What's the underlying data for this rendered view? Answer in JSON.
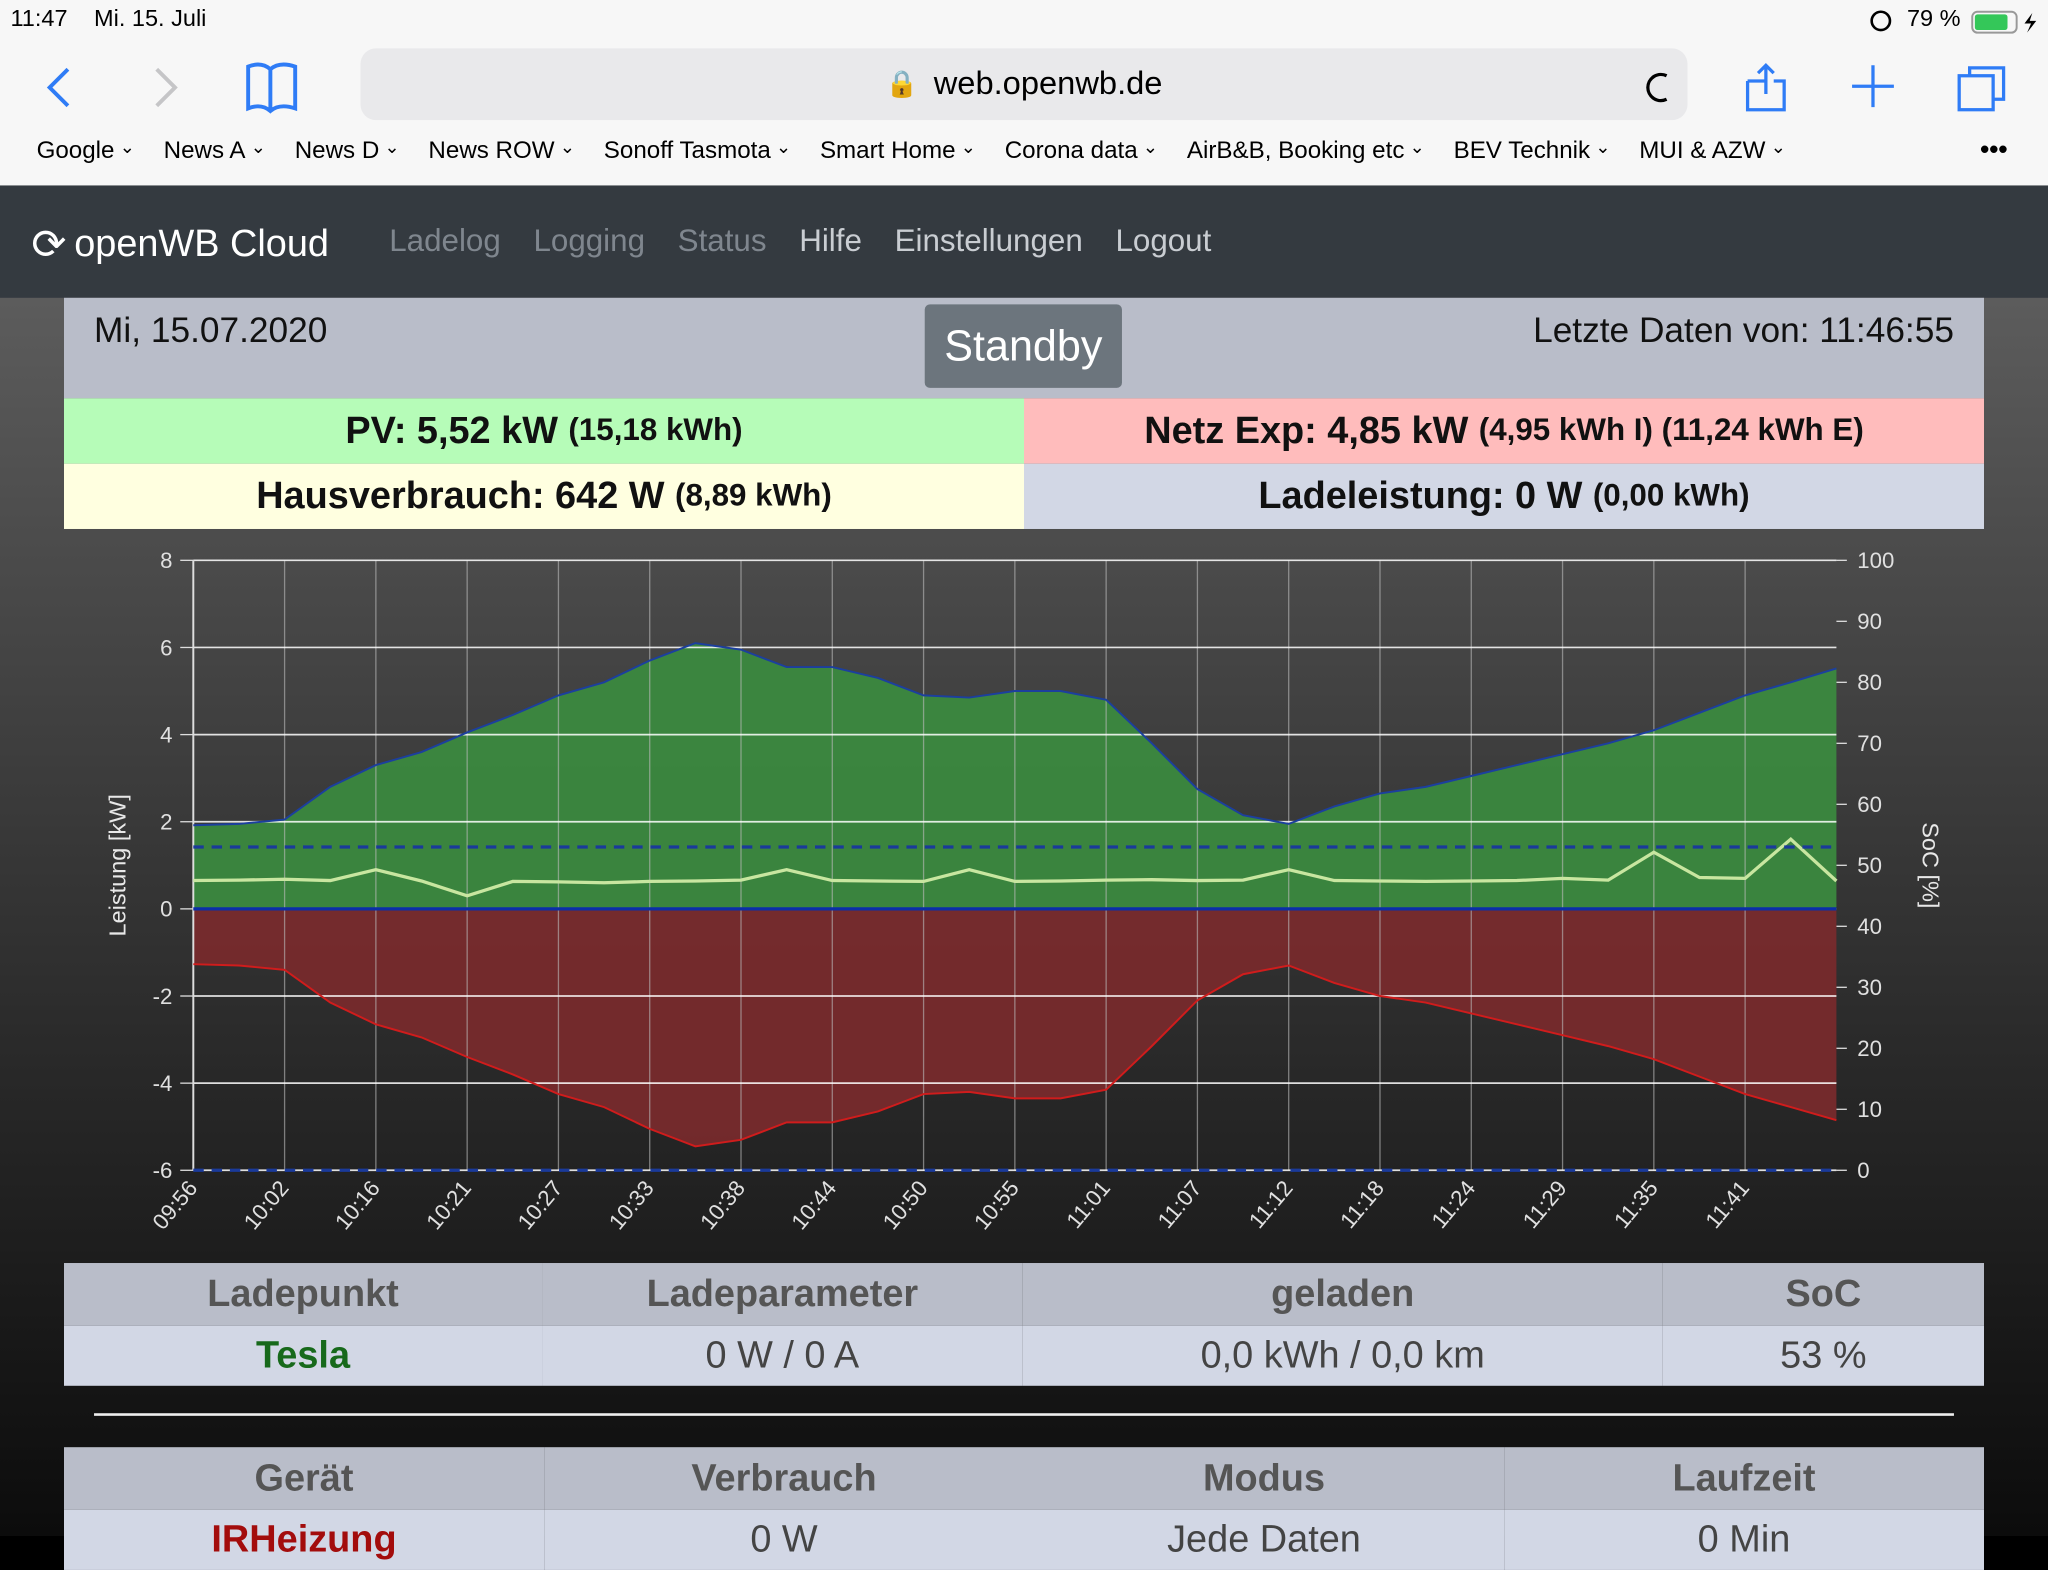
{
  "status_bar": {
    "time": "11:47",
    "date": "Mi. 15. Juli",
    "battery": "79 %"
  },
  "browser": {
    "url": "web.openwb.de",
    "bookmarks": [
      "Google",
      "News A",
      "News D",
      "News ROW",
      "Sonoff Tasmota",
      "Smart Home",
      "Corona data",
      "AirB&B, Booking etc",
      "BEV Technik",
      "MUI & AZW"
    ]
  },
  "nav": {
    "brand": "openWB Cloud",
    "links": [
      "Ladelog",
      "Logging",
      "Status",
      "Hilfe",
      "Einstellungen",
      "Logout"
    ]
  },
  "header": {
    "date": "Mi, 15.07.2020",
    "state": "Standby",
    "last_update": "Letzte Daten von: 11:46:55"
  },
  "summary": [
    {
      "label": "PV:",
      "value": "5,52 kW",
      "detail": "(15,18 kWh)"
    },
    {
      "label": "Netz Exp:",
      "value": "4,85 kW",
      "detail": "(4,95 kWh I) (11,24 kWh E)"
    },
    {
      "label": "Hausverbrauch:",
      "value": "642 W",
      "detail": "(8,89 kWh)"
    },
    {
      "label": "Ladeleistung:",
      "value": "0 W",
      "detail": "(0,00 kWh)"
    }
  ],
  "charge_table": {
    "headers": [
      "Ladepunkt",
      "Ladeparameter",
      "geladen",
      "SoC"
    ],
    "rows": [
      [
        "Tesla",
        "0 W / 0 A",
        "0,0 kWh / 0,0 km",
        "53 %"
      ]
    ]
  },
  "device_table": {
    "headers": [
      "Gerät",
      "Verbrauch",
      "Modus",
      "Laufzeit"
    ],
    "rows": [
      [
        "IRHeizung",
        "0 W",
        "Jede Daten",
        "0 Min"
      ]
    ]
  },
  "chart_data": {
    "type": "line",
    "y_label": "Leistung [kW]",
    "y2_label": "SoC [%]",
    "categories": [
      "09:56",
      null,
      "10:02",
      null,
      "10:16",
      null,
      "10:21",
      null,
      "10:27",
      null,
      "10:33",
      null,
      "10:38",
      null,
      "10:44",
      null,
      "10:50",
      null,
      "10:55",
      null,
      "11:01",
      null,
      "11:07",
      null,
      "11:12",
      null,
      "11:18",
      null,
      "11:24",
      null,
      "11:29",
      null,
      "11:35",
      null,
      "11:41",
      null,
      null
    ],
    "ylim": [
      -6,
      8
    ],
    "yticks": [
      -6,
      -4,
      -2,
      0,
      2,
      4,
      6,
      8
    ],
    "y2lim": [
      0,
      100
    ],
    "y2ticks": [
      0,
      10,
      20,
      30,
      40,
      50,
      60,
      70,
      80,
      90,
      100
    ],
    "grid": true,
    "series": [
      {
        "color": "#1c3f9e",
        "fill": "#3b8b3f",
        "values": [
          1.92,
          1.95,
          2.05,
          2.8,
          3.3,
          3.6,
          4.05,
          4.45,
          4.9,
          5.2,
          5.7,
          6.1,
          5.95,
          5.55,
          5.55,
          5.3,
          4.9,
          4.85,
          5.0,
          5.0,
          4.8,
          3.8,
          2.75,
          2.15,
          1.95,
          2.35,
          2.65,
          2.8,
          3.05,
          3.3,
          3.55,
          3.8,
          4.1,
          4.5,
          4.9,
          5.2,
          5.52
        ]
      },
      {
        "color": "#d01c1c",
        "fill": "#7a2a2c",
        "values": [
          -1.27,
          -1.3,
          -1.4,
          -2.15,
          -2.65,
          -2.95,
          -3.4,
          -3.8,
          -4.25,
          -4.55,
          -5.05,
          -5.45,
          -5.3,
          -4.9,
          -4.9,
          -4.65,
          -4.25,
          -4.2,
          -4.35,
          -4.35,
          -4.15,
          -3.15,
          -2.1,
          -1.5,
          -1.3,
          -1.7,
          -2.0,
          -2.15,
          -2.4,
          -2.65,
          -2.9,
          -3.15,
          -3.45,
          -3.85,
          -4.25,
          -4.55,
          -4.85
        ]
      },
      {
        "color": "#c8e6a0",
        "values": [
          0.65,
          0.66,
          0.68,
          0.65,
          0.9,
          0.64,
          0.3,
          0.63,
          0.62,
          0.6,
          0.63,
          0.64,
          0.66,
          0.9,
          0.65,
          0.64,
          0.63,
          0.9,
          0.63,
          0.64,
          0.66,
          0.67,
          0.65,
          0.66,
          0.9,
          0.65,
          0.64,
          0.63,
          0.64,
          0.65,
          0.7,
          0.66,
          1.3,
          0.72,
          0.7,
          1.6,
          0.64
        ]
      },
      {
        "color": "#0a2fa8",
        "values": [
          0,
          0,
          0,
          0,
          0,
          0,
          0,
          0,
          0,
          0,
          0,
          0,
          0,
          0,
          0,
          0,
          0,
          0,
          0,
          0,
          0,
          0,
          0,
          0,
          0,
          0,
          0,
          0,
          0,
          0,
          0,
          0,
          0,
          0,
          0,
          0,
          0
        ]
      },
      {
        "color": "#1a3a9a",
        "dashed": true,
        "axis": "y2",
        "values": [
          53,
          53,
          53,
          53,
          53,
          53,
          53,
          53,
          53,
          53,
          53,
          53,
          53,
          53,
          53,
          53,
          53,
          53,
          53,
          53,
          53,
          53,
          53,
          53,
          53,
          53,
          53,
          53,
          53,
          53,
          53,
          53,
          53,
          53,
          53,
          53,
          53
        ]
      },
      {
        "color": "#1a3a9a",
        "dashed": true,
        "axis": "y2",
        "values": [
          0,
          0,
          0,
          0,
          0,
          0,
          0,
          0,
          0,
          0,
          0,
          0,
          0,
          0,
          0,
          0,
          0,
          0,
          0,
          0,
          0,
          0,
          0,
          0,
          0,
          0,
          0,
          0,
          0,
          0,
          0,
          0,
          0,
          0,
          0,
          0,
          0
        ]
      }
    ]
  }
}
